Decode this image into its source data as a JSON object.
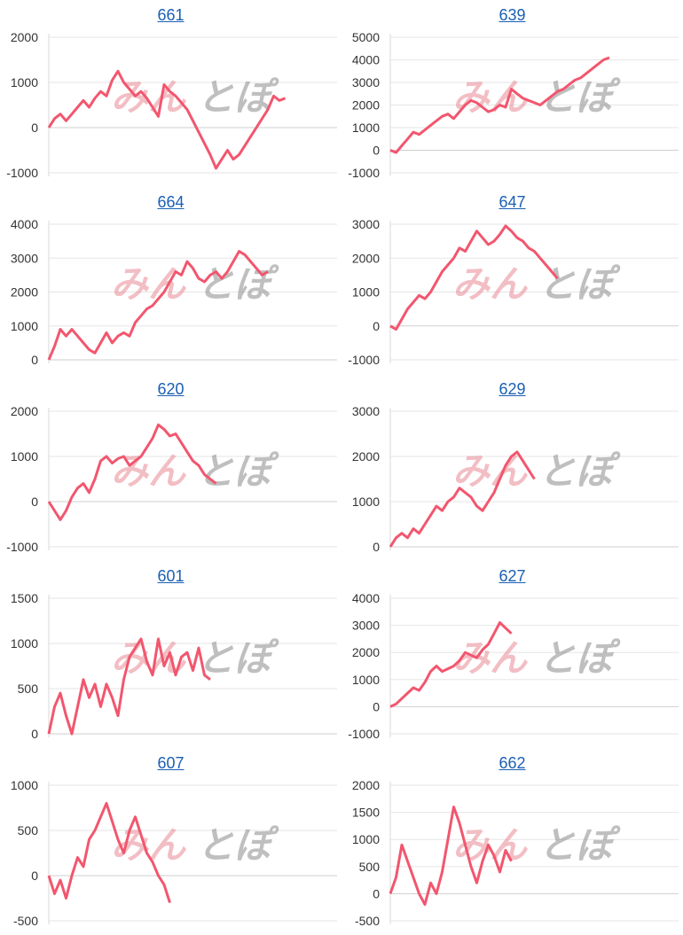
{
  "watermark": {
    "part1": "みん",
    "part2": "とぽ"
  },
  "line_color": "#f2566e",
  "chart_data": [
    {
      "type": "line",
      "title": "661",
      "yticks": [
        2000,
        1000,
        0,
        -1000
      ],
      "ylim": [
        -1000,
        2000
      ],
      "x": [
        0,
        2,
        4,
        6,
        8,
        10,
        12,
        14,
        16,
        18,
        20,
        22,
        24,
        26,
        28,
        30,
        32,
        34,
        36,
        38,
        40,
        42,
        44,
        46,
        48,
        50,
        52,
        54,
        56,
        58,
        60,
        62,
        64,
        66,
        68,
        70,
        72,
        74,
        76,
        78,
        80,
        82,
        84,
        86,
        88,
        90,
        92,
        94,
        96,
        98,
        100
      ],
      "values": [
        0,
        200,
        300,
        150,
        300,
        450,
        600,
        450,
        650,
        800,
        700,
        1050,
        1250,
        1000,
        850,
        700,
        800,
        650,
        450,
        250,
        950,
        800,
        700,
        550,
        400,
        150,
        -100,
        -350,
        -600,
        -900,
        -700,
        -500,
        -700,
        -600,
        -400,
        -200,
        0,
        200,
        400,
        700,
        600,
        650,
        null,
        null,
        null,
        null,
        null,
        null,
        null,
        null,
        null
      ]
    },
    {
      "type": "line",
      "title": "639",
      "yticks": [
        5000,
        4000,
        3000,
        2000,
        1000,
        0,
        -1000
      ],
      "ylim": [
        -1000,
        5000
      ],
      "x": [
        0,
        2,
        4,
        6,
        8,
        10,
        12,
        14,
        16,
        18,
        20,
        22,
        24,
        26,
        28,
        30,
        32,
        34,
        36,
        38,
        40,
        42,
        44,
        46,
        48,
        50,
        52,
        54,
        56,
        58,
        60,
        62,
        64,
        66,
        68,
        70,
        72,
        74,
        76,
        78,
        80
      ],
      "values": [
        0,
        -100,
        200,
        500,
        800,
        700,
        900,
        1100,
        1300,
        1500,
        1600,
        1400,
        1700,
        2000,
        2200,
        2100,
        1900,
        1700,
        1800,
        2000,
        1900,
        2700,
        2500,
        2300,
        2200,
        2100,
        2000,
        2200,
        2400,
        2600,
        2700,
        2900,
        3100,
        3200,
        3400,
        3600,
        3800,
        4000,
        4100,
        null,
        null
      ]
    },
    {
      "type": "line",
      "title": "664",
      "yticks": [
        4000,
        3000,
        2000,
        1000,
        0
      ],
      "ylim": [
        0,
        4000
      ],
      "x": [
        0,
        2,
        4,
        6,
        8,
        10,
        12,
        14,
        16,
        18,
        20,
        22,
        24,
        26,
        28,
        30,
        32,
        34,
        36,
        38,
        40,
        42,
        44,
        46,
        48,
        50,
        52,
        54,
        56,
        58,
        60,
        62,
        64,
        66,
        68,
        70,
        72,
        74,
        76,
        78,
        80,
        82,
        84,
        86,
        88,
        90,
        92,
        94,
        96,
        98,
        100
      ],
      "values": [
        0,
        400,
        900,
        700,
        900,
        700,
        500,
        300,
        200,
        500,
        800,
        500,
        700,
        800,
        700,
        1100,
        1300,
        1500,
        1600,
        1800,
        2000,
        2300,
        2600,
        2500,
        2900,
        2700,
        2400,
        2300,
        2500,
        2600,
        2400,
        2600,
        2900,
        3200,
        3100,
        2900,
        2700,
        2500,
        2600,
        null,
        null,
        null,
        null,
        null,
        null,
        null,
        null,
        null,
        null,
        null,
        null
      ]
    },
    {
      "type": "line",
      "title": "647",
      "yticks": [
        3000,
        2000,
        1000,
        0,
        -1000
      ],
      "ylim": [
        -1000,
        3000
      ],
      "x": [
        0,
        2,
        4,
        6,
        8,
        10,
        12,
        14,
        16,
        18,
        20,
        22,
        24,
        26,
        28,
        30,
        32,
        34,
        36,
        38,
        40,
        42,
        44,
        46,
        48,
        50,
        52,
        54,
        56,
        58,
        60,
        62,
        64,
        66,
        68,
        70,
        72,
        74,
        76,
        78,
        80
      ],
      "values": [
        0,
        -100,
        200,
        500,
        700,
        900,
        800,
        1000,
        1300,
        1600,
        1800,
        2000,
        2300,
        2200,
        2500,
        2800,
        2600,
        2400,
        2500,
        2700,
        2950,
        2800,
        2600,
        2500,
        2300,
        2200,
        2000,
        1800,
        1600,
        1400,
        null,
        null,
        null,
        null,
        null,
        null,
        null,
        null,
        null,
        null,
        null
      ]
    },
    {
      "type": "line",
      "title": "620",
      "yticks": [
        2000,
        1000,
        0,
        -1000
      ],
      "ylim": [
        -1000,
        2000
      ],
      "x": [
        0,
        2,
        4,
        6,
        8,
        10,
        12,
        14,
        16,
        18,
        20,
        22,
        24,
        26,
        28,
        30,
        32,
        34,
        36,
        38,
        40,
        42,
        44,
        46,
        48,
        50,
        52,
        54,
        56,
        58,
        60,
        62,
        64,
        66,
        68,
        70,
        72,
        74,
        76,
        78,
        80
      ],
      "values": [
        0,
        -200,
        -400,
        -200,
        100,
        300,
        400,
        200,
        500,
        900,
        1000,
        850,
        950,
        1000,
        800,
        900,
        1000,
        1200,
        1400,
        1700,
        1600,
        1450,
        1500,
        1300,
        1100,
        900,
        800,
        600,
        500,
        400,
        null,
        null,
        null,
        null,
        null,
        null,
        null,
        null,
        null,
        null,
        null
      ]
    },
    {
      "type": "line",
      "title": "629",
      "yticks": [
        3000,
        2000,
        1000,
        0
      ],
      "ylim": [
        0,
        3000
      ],
      "x": [
        0,
        2,
        4,
        6,
        8,
        10,
        12,
        14,
        16,
        18,
        20,
        22,
        24,
        26,
        28,
        30,
        32,
        34,
        36,
        38,
        40,
        42,
        44,
        46,
        48,
        50,
        52,
        54,
        56,
        58,
        60,
        62,
        64,
        66,
        68,
        70,
        72,
        74,
        76,
        78,
        80
      ],
      "values": [
        0,
        200,
        300,
        200,
        400,
        300,
        500,
        700,
        900,
        800,
        1000,
        1100,
        1300,
        1200,
        1100,
        900,
        800,
        1000,
        1200,
        1500,
        1800,
        2000,
        2100,
        1900,
        1700,
        1500,
        null,
        null,
        null,
        null,
        null,
        null,
        null,
        null,
        null,
        null,
        null,
        null,
        null,
        null,
        null
      ]
    },
    {
      "type": "line",
      "title": "601",
      "yticks": [
        1500,
        1000,
        500,
        0
      ],
      "ylim": [
        0,
        1500
      ],
      "x": [
        0,
        2,
        4,
        6,
        8,
        10,
        12,
        14,
        16,
        18,
        20,
        22,
        24,
        26,
        28,
        30,
        32,
        34,
        36,
        38,
        40,
        42,
        44,
        46,
        48,
        50,
        52,
        54,
        56,
        58,
        60,
        62,
        64,
        66,
        68,
        70,
        72,
        74,
        76,
        78,
        80
      ],
      "values": [
        0,
        300,
        450,
        200,
        0,
        300,
        600,
        400,
        550,
        300,
        550,
        400,
        200,
        600,
        850,
        950,
        1050,
        800,
        650,
        1050,
        750,
        900,
        650,
        850,
        900,
        700,
        950,
        650,
        600,
        null,
        null,
        null,
        null,
        null,
        null,
        null,
        null,
        null,
        null,
        null,
        null
      ]
    },
    {
      "type": "line",
      "title": "627",
      "yticks": [
        4000,
        3000,
        2000,
        1000,
        0,
        -1000
      ],
      "ylim": [
        -1000,
        4000
      ],
      "x": [
        0,
        2,
        4,
        6,
        8,
        10,
        12,
        14,
        16,
        18,
        20,
        22,
        24,
        26,
        28,
        30,
        32,
        34,
        36,
        38,
        40,
        42,
        44,
        46,
        48,
        50,
        52,
        54,
        56,
        58,
        60,
        62,
        64,
        66,
        68,
        70,
        72,
        74,
        76,
        78,
        80
      ],
      "values": [
        0,
        100,
        300,
        500,
        700,
        600,
        900,
        1300,
        1500,
        1300,
        1400,
        1500,
        1700,
        2000,
        1900,
        1800,
        2100,
        2300,
        2700,
        3100,
        2900,
        2700,
        null,
        null,
        null,
        null,
        null,
        null,
        null,
        null,
        null,
        null,
        null,
        null,
        null,
        null,
        null,
        null,
        null,
        null,
        null
      ]
    },
    {
      "type": "line",
      "title": "607",
      "yticks": [
        1000,
        500,
        0,
        -500
      ],
      "ylim": [
        -500,
        1000
      ],
      "x": [
        0,
        2,
        4,
        6,
        8,
        10,
        12,
        14,
        16,
        18,
        20,
        22,
        24,
        26,
        28,
        30,
        32,
        34,
        36,
        38,
        40,
        42,
        44,
        46,
        48,
        50,
        52,
        54,
        56,
        58,
        60,
        62,
        64,
        66,
        68,
        70,
        72,
        74,
        76,
        78,
        80
      ],
      "values": [
        0,
        -200,
        -50,
        -250,
        0,
        200,
        100,
        400,
        500,
        650,
        800,
        600,
        400,
        250,
        500,
        650,
        450,
        250,
        150,
        0,
        -100,
        -300,
        null,
        null,
        null,
        null,
        null,
        null,
        null,
        null,
        null,
        null,
        null,
        null,
        null,
        null,
        null,
        null,
        null,
        null,
        null
      ]
    },
    {
      "type": "line",
      "title": "662",
      "yticks": [
        2000,
        1500,
        1000,
        500,
        0,
        -500
      ],
      "ylim": [
        -500,
        2000
      ],
      "x": [
        0,
        2,
        4,
        6,
        8,
        10,
        12,
        14,
        16,
        18,
        20,
        22,
        24,
        26,
        28,
        30,
        32,
        34,
        36,
        38,
        40,
        42,
        44,
        46,
        48,
        50,
        52,
        54,
        56,
        58,
        60,
        62,
        64,
        66,
        68,
        70,
        72,
        74,
        76,
        78,
        80
      ],
      "values": [
        0,
        300,
        900,
        600,
        300,
        0,
        -200,
        200,
        0,
        400,
        1000,
        1600,
        1300,
        900,
        500,
        200,
        600,
        900,
        700,
        400,
        800,
        600,
        null,
        null,
        null,
        null,
        null,
        null,
        null,
        null,
        null,
        null,
        null,
        null,
        null,
        null,
        null,
        null,
        null,
        null,
        null
      ]
    }
  ]
}
